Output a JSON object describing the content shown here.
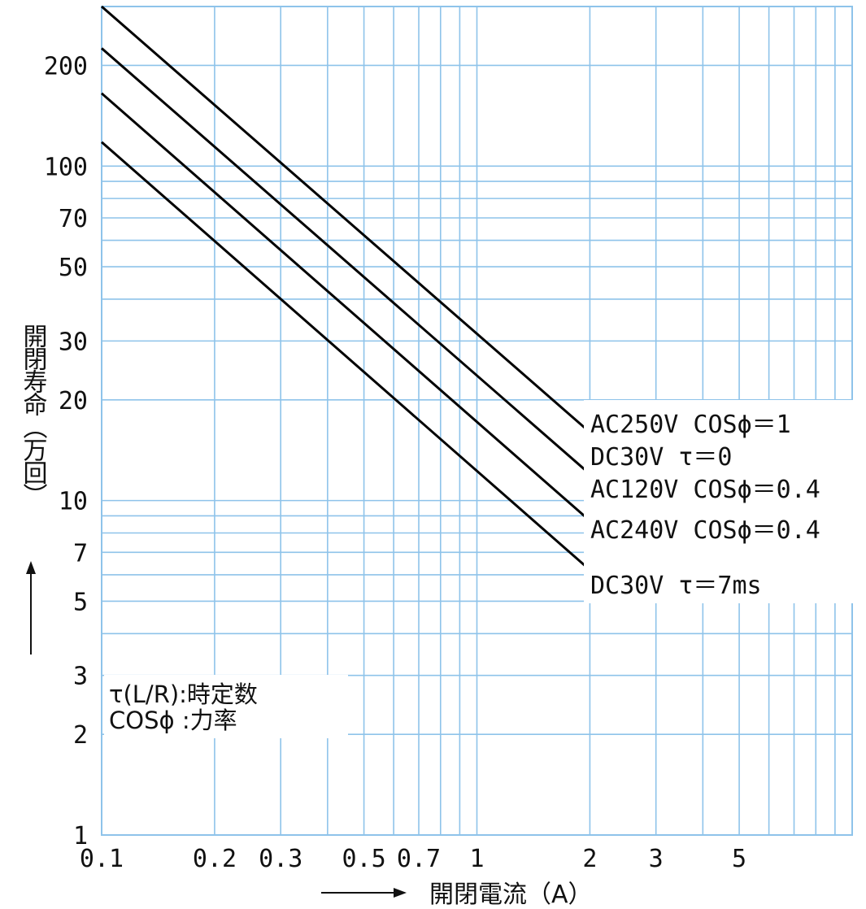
{
  "chart_data": {
    "type": "line",
    "title": "",
    "xlabel": "開閉電流（A）",
    "ylabel": "開閉寿命（万回）",
    "x_scale": "log",
    "y_scale": "log",
    "xlim": [
      0.1,
      10
    ],
    "ylim": [
      1,
      300
    ],
    "grid": true,
    "x_ticks": [
      {
        "value": 0.1,
        "label": "0.1"
      },
      {
        "value": 0.2,
        "label": "0.2"
      },
      {
        "value": 0.3,
        "label": "0.3"
      },
      {
        "value": 0.5,
        "label": "0.5"
      },
      {
        "value": 0.7,
        "label": "0.7"
      },
      {
        "value": 1,
        "label": "1"
      },
      {
        "value": 2,
        "label": "2"
      },
      {
        "value": 3,
        "label": "3"
      },
      {
        "value": 5,
        "label": "5"
      }
    ],
    "y_ticks": [
      {
        "value": 1,
        "label": "1"
      },
      {
        "value": 2,
        "label": "2"
      },
      {
        "value": 3,
        "label": "3"
      },
      {
        "value": 5,
        "label": "5"
      },
      {
        "value": 7,
        "label": "7"
      },
      {
        "value": 10,
        "label": "10"
      },
      {
        "value": 20,
        "label": "20"
      },
      {
        "value": 30,
        "label": "30"
      },
      {
        "value": 50,
        "label": "50"
      },
      {
        "value": 70,
        "label": "70"
      },
      {
        "value": 100,
        "label": "100"
      },
      {
        "value": 200,
        "label": "200"
      }
    ],
    "series": [
      {
        "name": "AC250V COSϕ=1",
        "x": [
          0.1,
          2
        ],
        "y": [
          300,
          16
        ]
      },
      {
        "name": "DC30V τ=0",
        "x": [
          0.1,
          2
        ],
        "y": [
          225,
          12
        ]
      },
      {
        "name": "AC120V COSϕ=0.4",
        "x": [
          0.1,
          2
        ],
        "y": [
          165,
          8.7
        ]
      },
      {
        "name": "AC240V COSϕ=0.4",
        "x": [
          0.1,
          2
        ],
        "y": [
          118,
          6.2
        ]
      }
    ],
    "series_labels": [
      "AC250V COSϕ＝1",
      "DC30V τ＝0",
      "AC120V COSϕ＝0.4",
      "AC240V COSϕ＝0.4",
      "DC30V τ＝7ms"
    ],
    "notes": [
      "τ(L/R):時定数",
      "COSϕ :力率"
    ],
    "colors": {
      "grid": "#8ec3ea",
      "line": "#000000",
      "text": "#111111"
    }
  }
}
